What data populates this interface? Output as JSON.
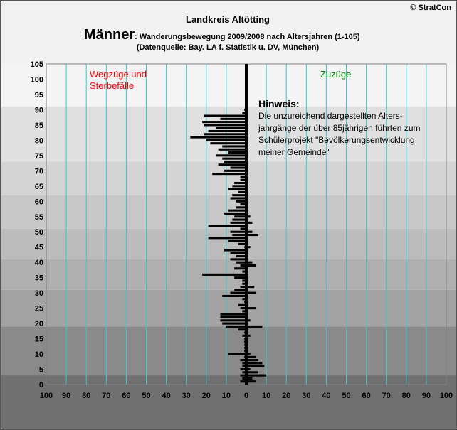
{
  "header": {
    "copyright": "© StratCon",
    "region": "Landkreis Altötting",
    "title_main": "Männer",
    "title_sub": ": Wanderungsbewegung 2009/2008 nach Altersjahren (1-105)",
    "source": "(Datenquelle: Bay. LA f. Statistik u. DV, München)"
  },
  "labels": {
    "left_line1": "Wegzüge und",
    "left_line2": "Sterbefälle",
    "right": "Zuzüge"
  },
  "hint": {
    "title": "Hinweis:",
    "lines": [
      "Die unzureichend dargestellten Alters-",
      "jahrgänge der über 85jährigen führten zum",
      "Schülerprojekt \"Bevölkerungsentwicklung",
      "meiner Gemeinde\""
    ]
  },
  "colors": {
    "bars": "#000000",
    "gridlines": "#33cccc",
    "left_label": "#ff0000",
    "right_label": "#008000"
  },
  "chart_data": {
    "type": "bar",
    "orientation": "horizontal",
    "x_tick_labels": [
      "100",
      "90",
      "80",
      "70",
      "60",
      "50",
      "40",
      "30",
      "20",
      "10",
      "0",
      "10",
      "20",
      "30",
      "40",
      "50",
      "60",
      "70",
      "80",
      "90",
      "100"
    ],
    "xlim": [
      -100,
      100
    ],
    "ylim": [
      0,
      105
    ],
    "y_ticks": [
      0,
      5,
      10,
      15,
      20,
      25,
      30,
      35,
      40,
      45,
      50,
      55,
      60,
      65,
      70,
      75,
      80,
      85,
      90,
      95,
      100,
      105
    ],
    "grid": true,
    "ages": [
      1,
      2,
      3,
      4,
      5,
      6,
      7,
      8,
      9,
      10,
      11,
      12,
      13,
      14,
      15,
      16,
      17,
      18,
      19,
      20,
      21,
      22,
      23,
      24,
      25,
      26,
      27,
      28,
      29,
      30,
      31,
      32,
      33,
      34,
      35,
      36,
      37,
      38,
      39,
      40,
      41,
      42,
      43,
      44,
      45,
      46,
      47,
      48,
      49,
      50,
      51,
      52,
      53,
      54,
      55,
      56,
      57,
      58,
      59,
      60,
      61,
      62,
      63,
      64,
      65,
      66,
      67,
      68,
      69,
      70,
      71,
      72,
      73,
      74,
      75,
      76,
      77,
      78,
      79,
      80,
      81,
      82,
      83,
      84,
      85,
      86,
      87,
      88,
      89,
      90
    ],
    "series": [
      {
        "name": "Wegzüge und Sterbefälle",
        "values": [
          -3,
          -2,
          -3,
          -2,
          -3,
          -2,
          -2,
          -3,
          -1,
          -9,
          -1,
          -1,
          -1,
          -1,
          -1,
          -2,
          -1,
          -4,
          -10,
          -12,
          -13,
          -13,
          -13,
          -2,
          -3,
          -4,
          -1,
          -2,
          -12,
          -8,
          -6,
          -3,
          -2,
          -2,
          -6,
          -22,
          -2,
          -6,
          -3,
          -5,
          -8,
          -5,
          -8,
          -11,
          -1,
          -4,
          -9,
          -19,
          -7,
          -8,
          -3,
          -19,
          -8,
          -7,
          -6,
          -11,
          -9,
          -5,
          -3,
          -5,
          -8,
          -7,
          -4,
          -9,
          -7,
          -6,
          -3,
          -3,
          -17,
          -11,
          -8,
          -14,
          -11,
          -12,
          -15,
          -9,
          -14,
          -12,
          -18,
          -20,
          -28,
          -21,
          -19,
          -15,
          -21,
          -22,
          -13,
          -21,
          -2,
          -1
        ]
      },
      {
        "name": "Zuzüge",
        "values": [
          5,
          3,
          10,
          6,
          2,
          9,
          8,
          6,
          5,
          2,
          1,
          1,
          1,
          1,
          1,
          2,
          1,
          1,
          8,
          1,
          2,
          1,
          1,
          1,
          5,
          1,
          1,
          1,
          1,
          5,
          1,
          4,
          1,
          1,
          1,
          1,
          1,
          1,
          5,
          3,
          1,
          1,
          1,
          1,
          2,
          1,
          1,
          1,
          6,
          3,
          1,
          1,
          3,
          1,
          2,
          1,
          1,
          1,
          1,
          1,
          1,
          1,
          1,
          1,
          1,
          1,
          1,
          1,
          1,
          1,
          1,
          1,
          1,
          1,
          1,
          1,
          1,
          1,
          1,
          1,
          1,
          1,
          1,
          1,
          1,
          0,
          0,
          0,
          0,
          0
        ]
      }
    ]
  }
}
